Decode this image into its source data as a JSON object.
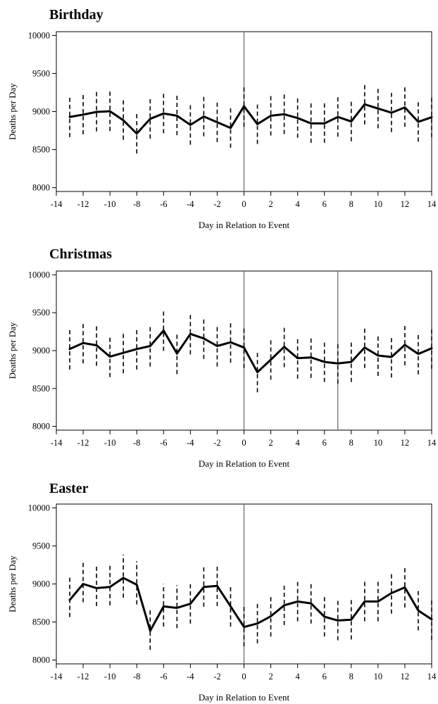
{
  "chart_data": [
    {
      "type": "line",
      "title": "Birthday",
      "xlabel": "Day in Relation to Event",
      "ylabel": "Deaths per Day",
      "xlim": [
        -14,
        14
      ],
      "ylim": [
        7950,
        10050
      ],
      "x_ticks": [
        -14,
        -12,
        -10,
        -8,
        -6,
        -4,
        -2,
        0,
        2,
        4,
        6,
        8,
        10,
        12,
        14
      ],
      "y_ticks": [
        8000,
        8500,
        9000,
        9500,
        10000
      ],
      "reference_lines": [
        0
      ],
      "x": [
        -13,
        -12,
        -11,
        -10,
        -9,
        -8,
        -7,
        -6,
        -5,
        -4,
        -3,
        -2,
        -1,
        0,
        1,
        2,
        3,
        4,
        5,
        6,
        7,
        8,
        9,
        10,
        11,
        12,
        13,
        14
      ],
      "values": [
        8930,
        8960,
        8995,
        9005,
        8885,
        8710,
        8905,
        8975,
        8945,
        8825,
        8935,
        8860,
        8785,
        9070,
        8835,
        8945,
        8965,
        8915,
        8845,
        8845,
        8930,
        8870,
        9095,
        9040,
        8985,
        9055,
        8865,
        8925
      ],
      "ci_lower": [
        8665,
        8700,
        8740,
        8745,
        8630,
        8450,
        8645,
        8715,
        8690,
        8565,
        8675,
        8600,
        8525,
        8800,
        8575,
        8685,
        8705,
        8655,
        8590,
        8590,
        8670,
        8610,
        8830,
        8780,
        8730,
        8800,
        8605,
        8665
      ],
      "ci_upper": [
        9195,
        9225,
        9260,
        9270,
        9150,
        8975,
        9170,
        9240,
        9210,
        9090,
        9200,
        9130,
        9050,
        9340,
        9095,
        9210,
        9230,
        9180,
        9110,
        9110,
        9195,
        9130,
        9365,
        9305,
        9245,
        9320,
        9130,
        9190
      ]
    },
    {
      "type": "line",
      "title": "Christmas",
      "xlabel": "Day in Relation to Event",
      "ylabel": "Deaths per Day",
      "xlim": [
        -14,
        14
      ],
      "ylim": [
        7950,
        10050
      ],
      "x_ticks": [
        -14,
        -12,
        -10,
        -8,
        -6,
        -4,
        -2,
        0,
        2,
        4,
        6,
        8,
        10,
        12,
        14
      ],
      "y_ticks": [
        8000,
        8500,
        9000,
        9500,
        10000
      ],
      "reference_lines": [
        0,
        7
      ],
      "x": [
        -13,
        -12,
        -11,
        -10,
        -9,
        -8,
        -7,
        -6,
        -5,
        -4,
        -3,
        -2,
        -1,
        0,
        1,
        2,
        3,
        4,
        5,
        6,
        7,
        8,
        9,
        10,
        11,
        12,
        13,
        14
      ],
      "values": [
        9020,
        9100,
        9070,
        8920,
        8970,
        9020,
        9060,
        9265,
        8960,
        9220,
        9160,
        9060,
        9110,
        9040,
        8715,
        8880,
        9050,
        8900,
        8910,
        8850,
        8830,
        8850,
        9040,
        8935,
        8915,
        9075,
        8955,
        9030
      ],
      "ci_lower": [
        8750,
        8830,
        8800,
        8650,
        8700,
        8750,
        8790,
        8995,
        8690,
        8950,
        8890,
        8790,
        8840,
        8770,
        8450,
        8615,
        8780,
        8630,
        8640,
        8585,
        8565,
        8585,
        8770,
        8665,
        8645,
        8805,
        8685,
        8760
      ],
      "ci_upper": [
        9290,
        9370,
        9340,
        9190,
        9240,
        9290,
        9330,
        9535,
        9230,
        9490,
        9430,
        9330,
        9380,
        9310,
        8980,
        9145,
        9320,
        9170,
        9180,
        9115,
        9095,
        9115,
        9310,
        9205,
        9185,
        9345,
        9225,
        9300
      ]
    },
    {
      "type": "line",
      "title": "Easter",
      "xlabel": "Day in Relation to Event",
      "ylabel": "Deaths per Day",
      "xlim": [
        -14,
        14
      ],
      "ylim": [
        7950,
        10050
      ],
      "x_ticks": [
        -14,
        -12,
        -10,
        -8,
        -6,
        -4,
        -2,
        0,
        2,
        4,
        6,
        8,
        10,
        12,
        14
      ],
      "y_ticks": [
        8000,
        8500,
        9000,
        9500,
        10000
      ],
      "reference_lines": [
        0
      ],
      "x": [
        -13,
        -12,
        -11,
        -10,
        -9,
        -8,
        -7,
        -6,
        -5,
        -4,
        -3,
        -2,
        -1,
        0,
        1,
        2,
        3,
        4,
        5,
        6,
        7,
        8,
        9,
        10,
        11,
        12,
        13,
        14
      ],
      "values": [
        8790,
        9000,
        8945,
        8960,
        9080,
        8990,
        8385,
        8705,
        8685,
        8740,
        8960,
        8975,
        8705,
        8435,
        8480,
        8575,
        8720,
        8770,
        8745,
        8570,
        8520,
        8530,
        8770,
        8770,
        8880,
        8955,
        8650,
        8535
      ],
      "ci_lower": [
        8565,
        8760,
        8710,
        8720,
        8820,
        8730,
        8135,
        8440,
        8420,
        8480,
        8700,
        8710,
        8440,
        8180,
        8220,
        8310,
        8460,
        8510,
        8480,
        8310,
        8260,
        8270,
        8510,
        8510,
        8610,
        8690,
        8390,
        8265
      ],
      "ci_upper": [
        9105,
        9310,
        9240,
        9265,
        9385,
        9300,
        8660,
        9000,
        8985,
        9030,
        9250,
        9265,
        8995,
        8705,
        8755,
        8850,
        8990,
        9035,
        9025,
        8835,
        8780,
        8790,
        9035,
        9030,
        9140,
        9215,
        8910,
        8800
      ]
    }
  ]
}
